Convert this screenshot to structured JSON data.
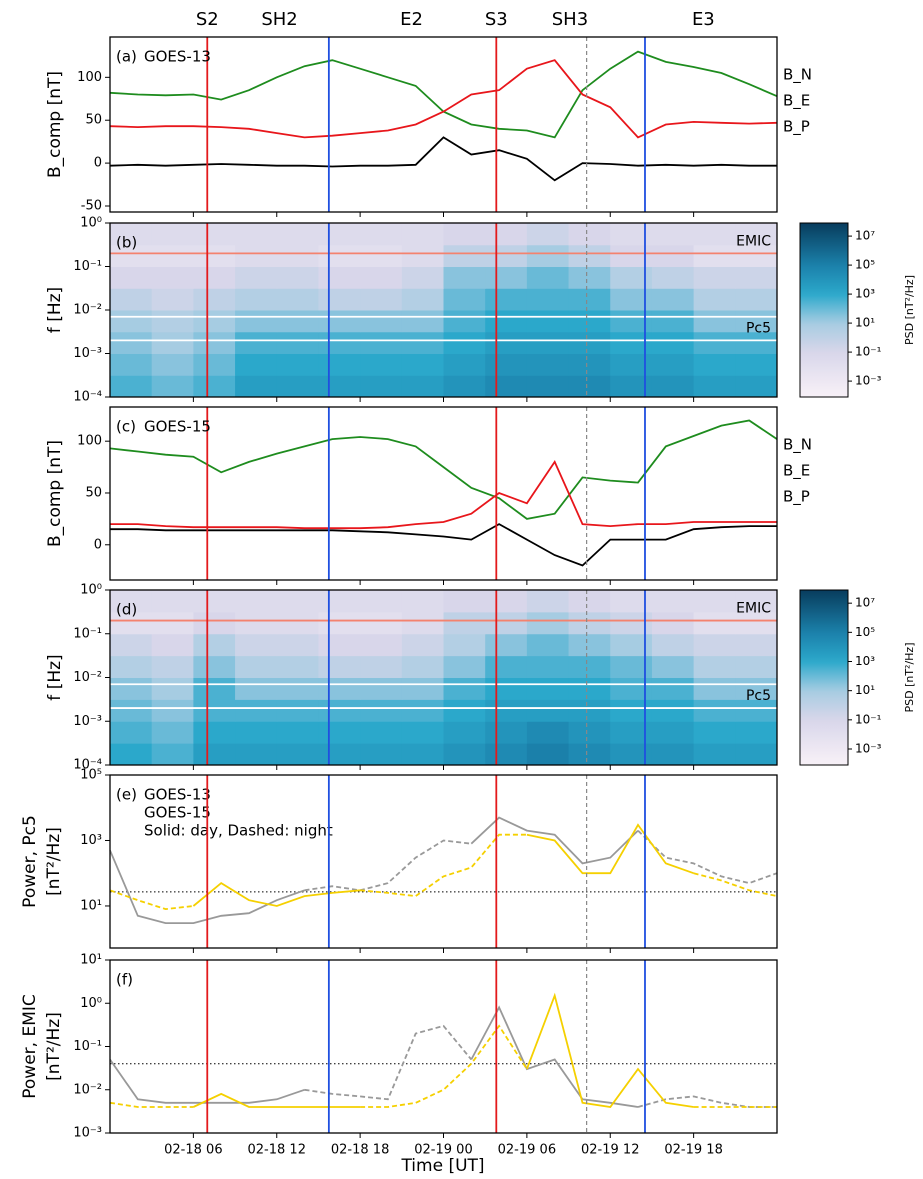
{
  "figure": {
    "xlim": [
      0,
      48
    ],
    "xticks": [
      {
        "value": 6,
        "label": "02-18 06"
      },
      {
        "value": 12,
        "label": "02-18 12"
      },
      {
        "value": 18,
        "label": "02-18 18"
      },
      {
        "value": 24,
        "label": "02-19 00"
      },
      {
        "value": 30,
        "label": "02-19 06"
      },
      {
        "value": 36,
        "label": "02-19 12"
      },
      {
        "value": 42,
        "label": "02-19 18"
      }
    ],
    "xlabel": "Time [UT]",
    "regions": [
      {
        "label": "S2",
        "x": 7,
        "color": "#e31a1c"
      },
      {
        "label": "SH2",
        "x": 12.2,
        "color": "#ffa500"
      },
      {
        "label": "E2",
        "x": 21.7,
        "color": "#1f4fe0"
      },
      {
        "label": "S3",
        "x": 27.8,
        "color": "#e31a1c"
      },
      {
        "label": "SH3",
        "x": 33.1,
        "color": "#ffa500"
      },
      {
        "label": "E3",
        "x": 42.7,
        "color": "#1f4fe0"
      }
    ],
    "vlines": [
      {
        "x": 7,
        "color": "#e31a1c",
        "dashed": false
      },
      {
        "x": 15.75,
        "color": "#1f4fe0",
        "dashed": false
      },
      {
        "x": 27.8,
        "color": "#e31a1c",
        "dashed": false
      },
      {
        "x": 34.3,
        "color": "#888888",
        "dashed": true
      },
      {
        "x": 38.5,
        "color": "#1f4fe0",
        "dashed": false
      }
    ]
  },
  "chart_data": [
    {
      "type": "line",
      "panel": "(a)",
      "satellite": "GOES-13",
      "satellite_color": "#999999",
      "ylabel": [
        "B_comp [nT]"
      ],
      "ylim": [
        -57,
        147
      ],
      "yticks": [
        -50,
        0,
        50,
        100
      ],
      "x": [
        0,
        2,
        4,
        6,
        8,
        10,
        12,
        14,
        16,
        18,
        20,
        22,
        24,
        26,
        28,
        30,
        32,
        34,
        36,
        38,
        40,
        42,
        44,
        46,
        48
      ],
      "series": [
        {
          "name": "B_N",
          "color": "#1e8c1e",
          "values": [
            82,
            80,
            79,
            80,
            74,
            85,
            100,
            113,
            120,
            110,
            100,
            90,
            60,
            45,
            40,
            38,
            30,
            85,
            110,
            130,
            118,
            112,
            105,
            92,
            78
          ]
        },
        {
          "name": "B_E",
          "color": "#e8161b",
          "values": [
            43,
            42,
            43,
            43,
            42,
            40,
            35,
            30,
            32,
            35,
            38,
            45,
            60,
            80,
            85,
            110,
            120,
            80,
            65,
            30,
            45,
            48,
            47,
            46,
            47
          ]
        },
        {
          "name": "B_P",
          "color": "#000000",
          "values": [
            -3,
            -2,
            -3,
            -2,
            -1,
            -2,
            -3,
            -3,
            -4,
            -3,
            -3,
            -2,
            30,
            10,
            15,
            5,
            -20,
            0,
            -1,
            -3,
            -2,
            -3,
            -2,
            -3,
            -3
          ]
        }
      ]
    },
    {
      "type": "heatmap",
      "panel": "(b)",
      "ylabel": [
        "f [Hz]"
      ],
      "log_y": true,
      "ylim": [
        0.0001,
        1
      ],
      "yticks": [
        {
          "value": 0.0001,
          "label": "10⁻⁴"
        },
        {
          "value": 0.001,
          "label": "10⁻³"
        },
        {
          "value": 0.01,
          "label": "10⁻²"
        },
        {
          "value": 0.1,
          "label": "10⁻¹"
        },
        {
          "value": 1,
          "label": "10⁰"
        }
      ],
      "x_edges": [
        0,
        3,
        6,
        9,
        12,
        15,
        18,
        21,
        24,
        27,
        30,
        33,
        36,
        39,
        42,
        45,
        48
      ],
      "y_edges": [
        0.0001,
        0.000316,
        0.001,
        0.00316,
        0.01,
        0.0316,
        0.1,
        0.316,
        1
      ],
      "z": [
        [
          300,
          100,
          300,
          3000,
          3000,
          3000,
          3000,
          3000,
          10000,
          30000,
          30000,
          30000,
          10000,
          10000,
          3000,
          3000
        ],
        [
          100,
          30,
          100,
          1000,
          1000,
          1000,
          1000,
          1000,
          3000,
          10000,
          10000,
          10000,
          3000,
          3000,
          1000,
          1000
        ],
        [
          30,
          10,
          30,
          300,
          300,
          300,
          300,
          300,
          1000,
          3000,
          3000,
          3000,
          1000,
          1000,
          300,
          300
        ],
        [
          10,
          3,
          10,
          30,
          30,
          30,
          30,
          30,
          300,
          1000,
          1000,
          1000,
          300,
          300,
          30,
          30
        ],
        [
          1,
          0.3,
          1,
          3,
          3,
          1,
          1,
          3,
          100,
          300,
          300,
          300,
          30,
          30,
          3,
          3
        ],
        [
          0.1,
          0.1,
          0.1,
          0.3,
          0.3,
          0.1,
          0.1,
          0.3,
          30,
          30,
          100,
          30,
          3,
          1,
          0.3,
          0.3
        ],
        [
          0.01,
          0.01,
          0.01,
          0.03,
          0.03,
          0.01,
          0.01,
          0.03,
          1,
          1,
          10,
          1,
          0.1,
          0.1,
          0.01,
          0.01
        ],
        [
          0.03,
          0.03,
          0.03,
          0.03,
          0.03,
          0.03,
          0.03,
          0.03,
          0.1,
          0.1,
          0.3,
          0.1,
          0.03,
          0.03,
          0.03,
          0.03
        ]
      ],
      "hlines": [
        {
          "value": 0.2,
          "color": "#f4826e",
          "label": "EMIC"
        },
        {
          "value": 0.007,
          "color": "#ffffff"
        },
        {
          "value": 0.002,
          "color": "#ffffff",
          "label": "Pc5"
        }
      ],
      "clim": [
        8e-05,
        80000000
      ],
      "clabel": "PSD [nT²/Hz]",
      "cticks": [
        {
          "value": 0.001,
          "label": "10⁻³"
        },
        {
          "value": 0.1,
          "label": "10⁻¹"
        },
        {
          "value": 10,
          "label": "10¹"
        },
        {
          "value": 1000,
          "label": "10³"
        },
        {
          "value": 100000,
          "label": "10⁵"
        },
        {
          "value": 10000000,
          "label": "10⁷"
        }
      ]
    },
    {
      "type": "line",
      "panel": "(c)",
      "satellite": "GOES-15",
      "satellite_color": "#f5d000",
      "ylabel": [
        "B_comp [nT]"
      ],
      "ylim": [
        -34,
        133
      ],
      "yticks": [
        0,
        50,
        100
      ],
      "x": [
        0,
        2,
        4,
        6,
        8,
        10,
        12,
        14,
        16,
        18,
        20,
        22,
        24,
        26,
        28,
        30,
        32,
        34,
        36,
        38,
        40,
        42,
        44,
        46,
        48
      ],
      "series": [
        {
          "name": "B_N",
          "color": "#1e8c1e",
          "values": [
            93,
            90,
            87,
            85,
            70,
            80,
            88,
            95,
            102,
            104,
            102,
            95,
            75,
            55,
            45,
            25,
            30,
            65,
            62,
            60,
            95,
            105,
            115,
            120,
            102
          ]
        },
        {
          "name": "B_E",
          "color": "#e8161b",
          "values": [
            20,
            20,
            18,
            17,
            17,
            17,
            17,
            16,
            16,
            16,
            17,
            20,
            22,
            30,
            50,
            40,
            80,
            20,
            18,
            20,
            20,
            22,
            22,
            22,
            22
          ]
        },
        {
          "name": "B_P",
          "color": "#000000",
          "values": [
            15,
            15,
            14,
            14,
            14,
            14,
            14,
            14,
            14,
            13,
            12,
            10,
            8,
            5,
            20,
            5,
            -10,
            -20,
            5,
            5,
            5,
            15,
            17,
            18,
            18
          ]
        }
      ]
    },
    {
      "type": "heatmap",
      "panel": "(d)",
      "ylabel": [
        "f [Hz]"
      ],
      "log_y": true,
      "ylim": [
        0.0001,
        1
      ],
      "yticks": [
        {
          "value": 0.0001,
          "label": "10⁻⁴"
        },
        {
          "value": 0.001,
          "label": "10⁻³"
        },
        {
          "value": 0.01,
          "label": "10⁻²"
        },
        {
          "value": 0.1,
          "label": "10⁻¹"
        },
        {
          "value": 1,
          "label": "10⁰"
        }
      ],
      "x_edges": [
        0,
        3,
        6,
        9,
        12,
        15,
        18,
        21,
        24,
        27,
        30,
        33,
        36,
        39,
        42,
        45,
        48
      ],
      "y_edges": [
        0.0001,
        0.000316,
        0.001,
        0.00316,
        0.01,
        0.0316,
        0.1,
        0.316,
        1
      ],
      "z": [
        [
          1000,
          300,
          3000,
          3000,
          3000,
          3000,
          3000,
          3000,
          10000,
          30000,
          100000,
          30000,
          10000,
          10000,
          3000,
          3000
        ],
        [
          300,
          100,
          1000,
          1000,
          1000,
          1000,
          1000,
          1000,
          3000,
          10000,
          30000,
          10000,
          3000,
          3000,
          1000,
          1000
        ],
        [
          100,
          30,
          300,
          300,
          300,
          300,
          300,
          300,
          1000,
          3000,
          3000,
          3000,
          1000,
          1000,
          300,
          300
        ],
        [
          30,
          10,
          300,
          30,
          30,
          30,
          30,
          30,
          300,
          1000,
          1000,
          1000,
          300,
          300,
          30,
          30
        ],
        [
          3,
          1,
          30,
          3,
          3,
          1,
          1,
          3,
          30,
          300,
          300,
          300,
          100,
          30,
          3,
          3
        ],
        [
          0.3,
          0.1,
          3,
          0.3,
          0.3,
          0.1,
          0.1,
          0.3,
          3,
          30,
          100,
          30,
          10,
          1,
          0.3,
          0.3
        ],
        [
          0.01,
          0.01,
          0.1,
          0.03,
          0.03,
          0.01,
          0.01,
          0.03,
          1,
          1,
          10,
          1,
          0.3,
          0.1,
          0.01,
          0.01
        ],
        [
          0.03,
          0.03,
          0.03,
          0.03,
          0.03,
          0.03,
          0.03,
          0.03,
          0.1,
          0.1,
          0.3,
          0.1,
          0.03,
          0.03,
          0.03,
          0.03
        ]
      ],
      "hlines": [
        {
          "value": 0.2,
          "color": "#f4826e",
          "label": "EMIC"
        },
        {
          "value": 0.007,
          "color": "#ffffff"
        },
        {
          "value": 0.002,
          "color": "#ffffff",
          "label": "Pc5"
        }
      ],
      "clim": [
        8e-05,
        80000000
      ],
      "clabel": "PSD [nT²/Hz]",
      "cticks": [
        {
          "value": 0.001,
          "label": "10⁻³"
        },
        {
          "value": 0.1,
          "label": "10⁻¹"
        },
        {
          "value": 10,
          "label": "10¹"
        },
        {
          "value": 1000,
          "label": "10³"
        },
        {
          "value": 100000,
          "label": "10⁵"
        },
        {
          "value": 10000000,
          "label": "10⁷"
        }
      ]
    },
    {
      "type": "line",
      "panel": "(e)",
      "ylabel": [
        "Power, Pc5",
        "[nT²/Hz]"
      ],
      "log_y": true,
      "note": "Solid: day, Dashed: night",
      "ylim": [
        0.52,
        100000
      ],
      "yticks": [
        {
          "value": 10,
          "label": "10¹"
        },
        {
          "value": 1000,
          "label": "10³"
        },
        {
          "value": 100000,
          "label": "10⁵"
        }
      ],
      "hline": 27,
      "x": [
        0,
        2,
        4,
        6,
        8,
        10,
        12,
        14,
        16,
        18,
        20,
        22,
        24,
        26,
        28,
        30,
        32,
        34,
        36,
        38,
        40,
        42,
        44,
        46,
        48
      ],
      "series": [
        {
          "name": "GOES-13",
          "color": "#999999",
          "night": [
            [
              14,
              26
            ],
            [
              38,
              48
            ]
          ],
          "values": [
            500,
            5,
            3,
            3,
            5,
            6,
            15,
            30,
            40,
            30,
            50,
            300,
            1000,
            800,
            5000,
            2000,
            1500,
            200,
            300,
            2000,
            300,
            200,
            80,
            50,
            100
          ]
        },
        {
          "name": "GOES-15",
          "color": "#f5d000",
          "night": [
            [
              0,
              6
            ],
            [
              18,
              30
            ],
            [
              42,
              48
            ]
          ],
          "values": [
            30,
            15,
            8,
            10,
            50,
            15,
            10,
            20,
            25,
            30,
            25,
            20,
            80,
            150,
            1500,
            1500,
            1000,
            100,
            100,
            3000,
            200,
            100,
            60,
            30,
            20
          ]
        }
      ]
    },
    {
      "type": "line",
      "panel": "(f)",
      "ylabel": [
        "Power, EMIC",
        "[nT²/Hz]"
      ],
      "log_y": true,
      "ylim": [
        0.001,
        10
      ],
      "yticks": [
        {
          "value": 0.001,
          "label": "10⁻³"
        },
        {
          "value": 0.01,
          "label": "10⁻²"
        },
        {
          "value": 0.1,
          "label": "10⁻¹"
        },
        {
          "value": 1,
          "label": "10⁰"
        },
        {
          "value": 10,
          "label": "10¹"
        }
      ],
      "hline": 0.04,
      "x": [
        0,
        2,
        4,
        6,
        8,
        10,
        12,
        14,
        16,
        18,
        20,
        22,
        24,
        26,
        28,
        30,
        32,
        34,
        36,
        38,
        40,
        42,
        44,
        46,
        48
      ],
      "series": [
        {
          "color": "#999999",
          "night": [
            [
              14,
              26
            ],
            [
              38,
              48
            ]
          ],
          "values": [
            0.05,
            0.006,
            0.005,
            0.005,
            0.005,
            0.005,
            0.006,
            0.01,
            0.008,
            0.007,
            0.006,
            0.2,
            0.3,
            0.05,
            0.8,
            0.03,
            0.05,
            0.006,
            0.005,
            0.004,
            0.006,
            0.007,
            0.005,
            0.004,
            0.004
          ]
        },
        {
          "color": "#f5d000",
          "night": [
            [
              0,
              6
            ],
            [
              18,
              30
            ],
            [
              42,
              48
            ]
          ],
          "values": [
            0.005,
            0.004,
            0.004,
            0.004,
            0.008,
            0.004,
            0.004,
            0.004,
            0.004,
            0.004,
            0.004,
            0.005,
            0.01,
            0.04,
            0.3,
            0.03,
            1.5,
            0.005,
            0.004,
            0.03,
            0.005,
            0.004,
            0.004,
            0.004,
            0.004
          ]
        }
      ]
    }
  ]
}
